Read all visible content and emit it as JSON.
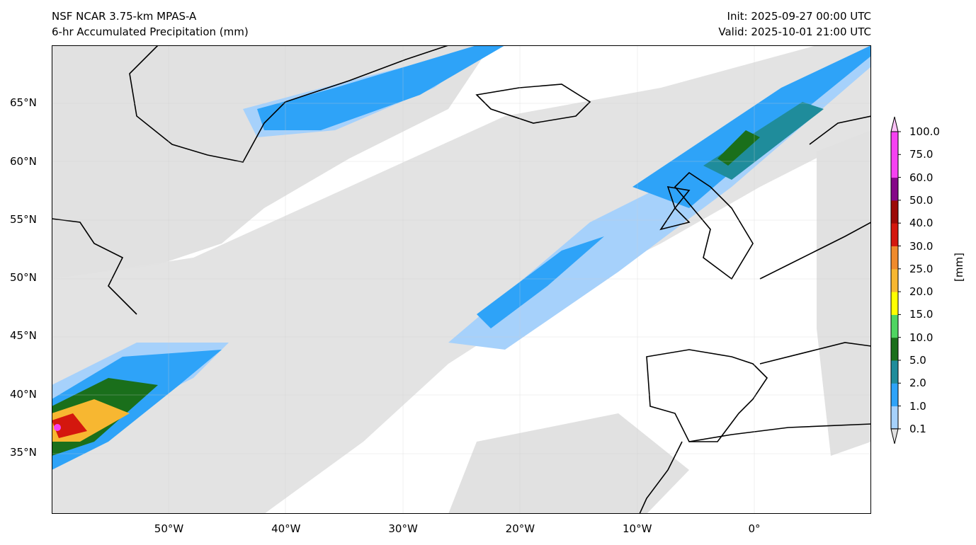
{
  "title": {
    "line1": "NSF NCAR 3.75-km MPAS-A",
    "line2": "6-hr Accumulated Precipitation (mm)",
    "init": "Init: 2025-09-27 00:00 UTC",
    "valid": "Valid: 2025-10-01 21:00 UTC"
  },
  "axes": {
    "lat_labels": [
      "65°N",
      "60°N",
      "55°N",
      "50°N",
      "45°N",
      "40°N",
      "35°N"
    ],
    "lat_values": [
      65,
      60,
      55,
      50,
      45,
      40,
      35
    ],
    "lon_labels": [
      "50°W",
      "40°W",
      "30°W",
      "20°W",
      "10°W",
      "0°"
    ],
    "lon_values": [
      -50,
      -40,
      -30,
      -20,
      -10,
      0
    ],
    "lon_range": [
      -60,
      10
    ],
    "lat_range": [
      29.7,
      70
    ]
  },
  "colorbar": {
    "unit": "[mm]",
    "levels": [
      "0.1",
      "1.0",
      "2.0",
      "5.0",
      "10.0",
      "15.0",
      "20.0",
      "25.0",
      "30.0",
      "40.0",
      "50.0",
      "60.0",
      "75.0",
      "100.0"
    ],
    "colors": [
      "#e1e1e1",
      "#a6d1fb",
      "#2ea3f8",
      "#1f8c9b",
      "#1a6f1b",
      "#4fd561",
      "#ffff00",
      "#f7b731",
      "#ef8a2c",
      "#d4170e",
      "#9c0a07",
      "#850788",
      "#f641f2",
      "#fbc2f6"
    ]
  }
}
